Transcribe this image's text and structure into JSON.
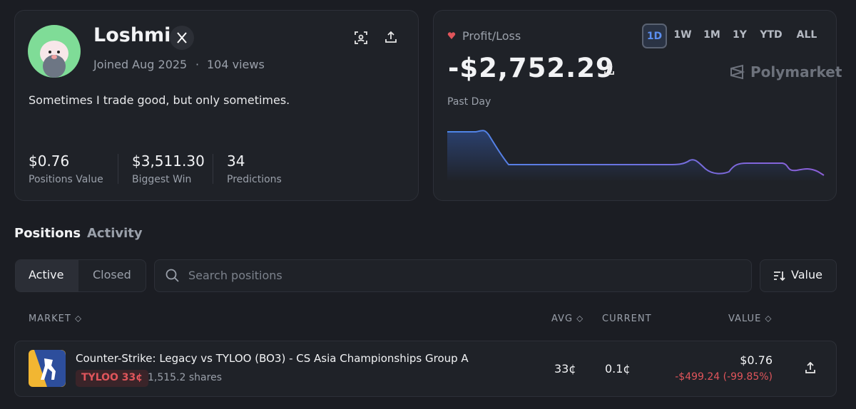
{
  "profile": {
    "name": "Loshmi",
    "joined": "Joined Aug 2025",
    "separator": "·",
    "views": "104 views",
    "bio": "Sometimes I trade good, but only sometimes.",
    "stats": [
      {
        "value": "$0.76",
        "label": "Positions Value"
      },
      {
        "value": "$3,511.30",
        "label": "Biggest Win"
      },
      {
        "value": "34",
        "label": "Predictions"
      }
    ]
  },
  "pnl": {
    "label": "Profit/Loss",
    "ranges": [
      "1D",
      "1W",
      "1M",
      "1Y",
      "YTD",
      "ALL"
    ],
    "amount": "-$2,752.29",
    "brand": "Polymarket",
    "period": "Past Day"
  },
  "tabs": [
    "Positions",
    "Activity"
  ],
  "filters": [
    "Active",
    "Closed"
  ],
  "search": "Search positions",
  "sort": "Value",
  "table": {
    "headers": [
      "MARKET",
      "AVG",
      "CURRENT",
      "VALUE"
    ],
    "rows": [
      {
        "title": "Counter-Strike: Legacy vs TYLOO (BO3) - CS Asia Championships Group A",
        "outcome": "TYLOO 33¢",
        "shares": "1,515.2 shares",
        "avg": "33¢",
        "current": "0.1¢",
        "value": "$0.76",
        "pnl": "-$499.24 (-99.85%)"
      }
    ]
  }
}
